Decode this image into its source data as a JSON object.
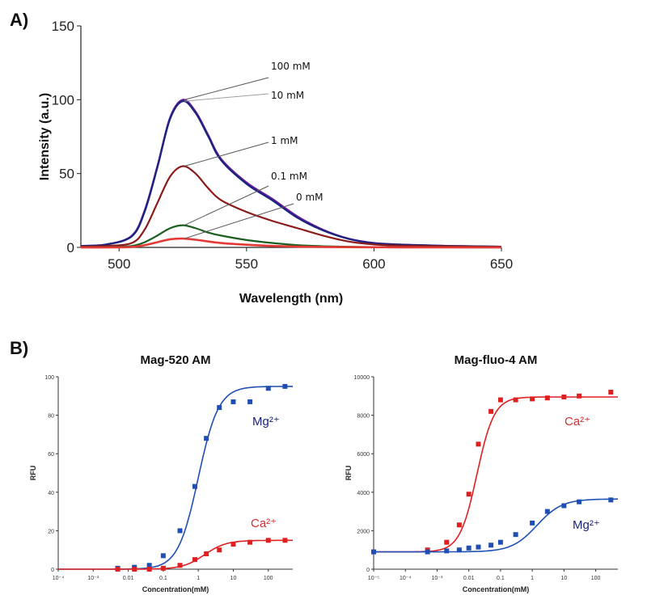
{
  "panel_a_label": "A)",
  "panel_b_label": "B)",
  "colors": {
    "mg_blue": "#1f4fb5",
    "ca_red": "#e02020",
    "mg_text": "#1a237e",
    "ca_text": "#d32f2f"
  },
  "chart_data": [
    {
      "type": "line",
      "xlabel": "Wavelength (nm)",
      "ylabel": "Intensity (a.u.)",
      "xlim": [
        485,
        650
      ],
      "ylim": [
        0,
        150
      ],
      "xticks": [
        500,
        550,
        600,
        650
      ],
      "yticks": [
        0,
        50,
        100,
        150
      ],
      "x": [
        485,
        495,
        505,
        510,
        515,
        520,
        525,
        530,
        535,
        540,
        550,
        560,
        570,
        580,
        590,
        600,
        610,
        620,
        630,
        640,
        650
      ],
      "series": [
        {
          "name": "100 mM",
          "color": "#6a1b9a",
          "values": [
            1,
            2,
            8,
            25,
            55,
            88,
            100,
            92,
            76,
            60,
            44,
            33,
            21,
            12,
            6,
            3,
            2,
            1.5,
            1,
            0.8,
            0.5
          ]
        },
        {
          "name": "10 mM",
          "color": "#1a237e",
          "values": [
            1,
            2,
            7.5,
            24,
            54,
            87,
            99,
            91,
            75,
            59,
            43,
            32,
            20,
            11.5,
            5.8,
            2.8,
            1.9,
            1.4,
            1,
            0.7,
            0.5
          ]
        },
        {
          "name": "1 mM",
          "color": "#8b1a1a",
          "values": [
            0.5,
            1,
            3,
            12,
            30,
            48,
            55,
            50,
            40,
            32,
            24,
            18,
            13,
            8,
            4,
            2,
            1.2,
            1,
            0.8,
            0.5,
            0.4
          ]
        },
        {
          "name": "0.1 mM",
          "color": "#1b5e20",
          "values": [
            0,
            0.2,
            1,
            3.5,
            8,
            13,
            15,
            13,
            10,
            8,
            5,
            3,
            1.5,
            0.8,
            0.4,
            0.2,
            0.1,
            0.1,
            0.05,
            0,
            0
          ]
        },
        {
          "name": "0 mM",
          "color": "#e53935",
          "values": [
            0,
            0,
            0.3,
            1.5,
            3.5,
            5.5,
            6,
            5.2,
            4,
            3,
            1.8,
            1,
            0.5,
            0.3,
            0.15,
            0.1,
            0.05,
            0,
            0,
            0,
            0
          ]
        }
      ],
      "annotations": [
        "100 mM",
        "10 mM",
        "1 mM",
        "0.1 mM",
        "0 mM"
      ]
    },
    {
      "type": "scatter",
      "title": "Mag-520 AM",
      "xlabel": "Concentration(mM)",
      "ylabel": "RFU",
      "xscale": "log",
      "xlim": [
        0.0001,
        500
      ],
      "ylim": [
        0,
        100
      ],
      "xtick_labels": [
        "10⁻⁴",
        "10⁻³",
        "0.01",
        "0.1",
        "1",
        "10",
        "100"
      ],
      "ytick_labels": [
        "0",
        "20",
        "40",
        "60",
        "80",
        "100"
      ],
      "series": [
        {
          "name": "Mg²⁺",
          "color": "#1f4fb5",
          "x": [
            0.005,
            0.015,
            0.04,
            0.1,
            0.3,
            0.8,
            1.7,
            4,
            10,
            30,
            100,
            300
          ],
          "values": [
            0.5,
            1,
            2,
            7,
            20,
            43,
            68,
            84,
            87,
            87,
            94,
            95
          ]
        },
        {
          "name": "Ca²⁺",
          "color": "#e02020",
          "x": [
            0.005,
            0.015,
            0.04,
            0.1,
            0.3,
            0.8,
            1.7,
            4,
            10,
            30,
            100,
            300
          ],
          "values": [
            0,
            0,
            0,
            0.5,
            2,
            5,
            8,
            10,
            13,
            14,
            15,
            15
          ]
        }
      ]
    },
    {
      "type": "scatter",
      "title": "Mag-fluo-4 AM",
      "xlabel": "Concentration(mM)",
      "ylabel": "RFU",
      "xscale": "log",
      "xlim": [
        1e-05,
        500
      ],
      "ylim": [
        0,
        10000
      ],
      "xtick_labels": [
        "10⁻⁵",
        "10⁻⁴",
        "10⁻³",
        "0.01",
        "0.1",
        "1",
        "10",
        "100"
      ],
      "ytick_labels": [
        "0",
        "2000",
        "4000",
        "6000",
        "8000",
        "10000"
      ],
      "series": [
        {
          "name": "Ca²⁺",
          "color": "#e02020",
          "x": [
            1e-05,
            0.0005,
            0.002,
            0.005,
            0.01,
            0.02,
            0.05,
            0.1,
            0.3,
            1,
            3,
            10,
            30,
            300
          ],
          "values": [
            900,
            1000,
            1400,
            2300,
            3900,
            6500,
            8200,
            8800,
            8800,
            8850,
            8900,
            8950,
            9000,
            9200
          ]
        },
        {
          "name": "Mg²⁺",
          "color": "#1f4fb5",
          "x": [
            1e-05,
            0.0005,
            0.002,
            0.005,
            0.01,
            0.02,
            0.05,
            0.1,
            0.3,
            1,
            3,
            10,
            30,
            300
          ],
          "values": [
            900,
            900,
            950,
            1000,
            1100,
            1150,
            1250,
            1400,
            1800,
            2400,
            3000,
            3300,
            3500,
            3600
          ]
        }
      ]
    }
  ]
}
